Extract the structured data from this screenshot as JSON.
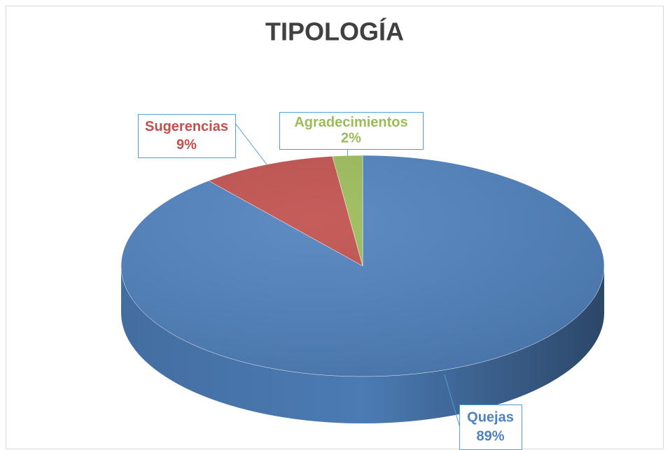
{
  "chart_data": {
    "type": "pie",
    "title": "TIPOLOGÍA",
    "categories": [
      "Quejas",
      "Sugerencias",
      "Agradecimientos"
    ],
    "values": [
      89,
      9,
      2
    ],
    "value_labels": [
      "89%",
      "9%",
      "2%"
    ],
    "colors": [
      "#4f81bd",
      "#c0504d",
      "#9bbb59"
    ]
  }
}
